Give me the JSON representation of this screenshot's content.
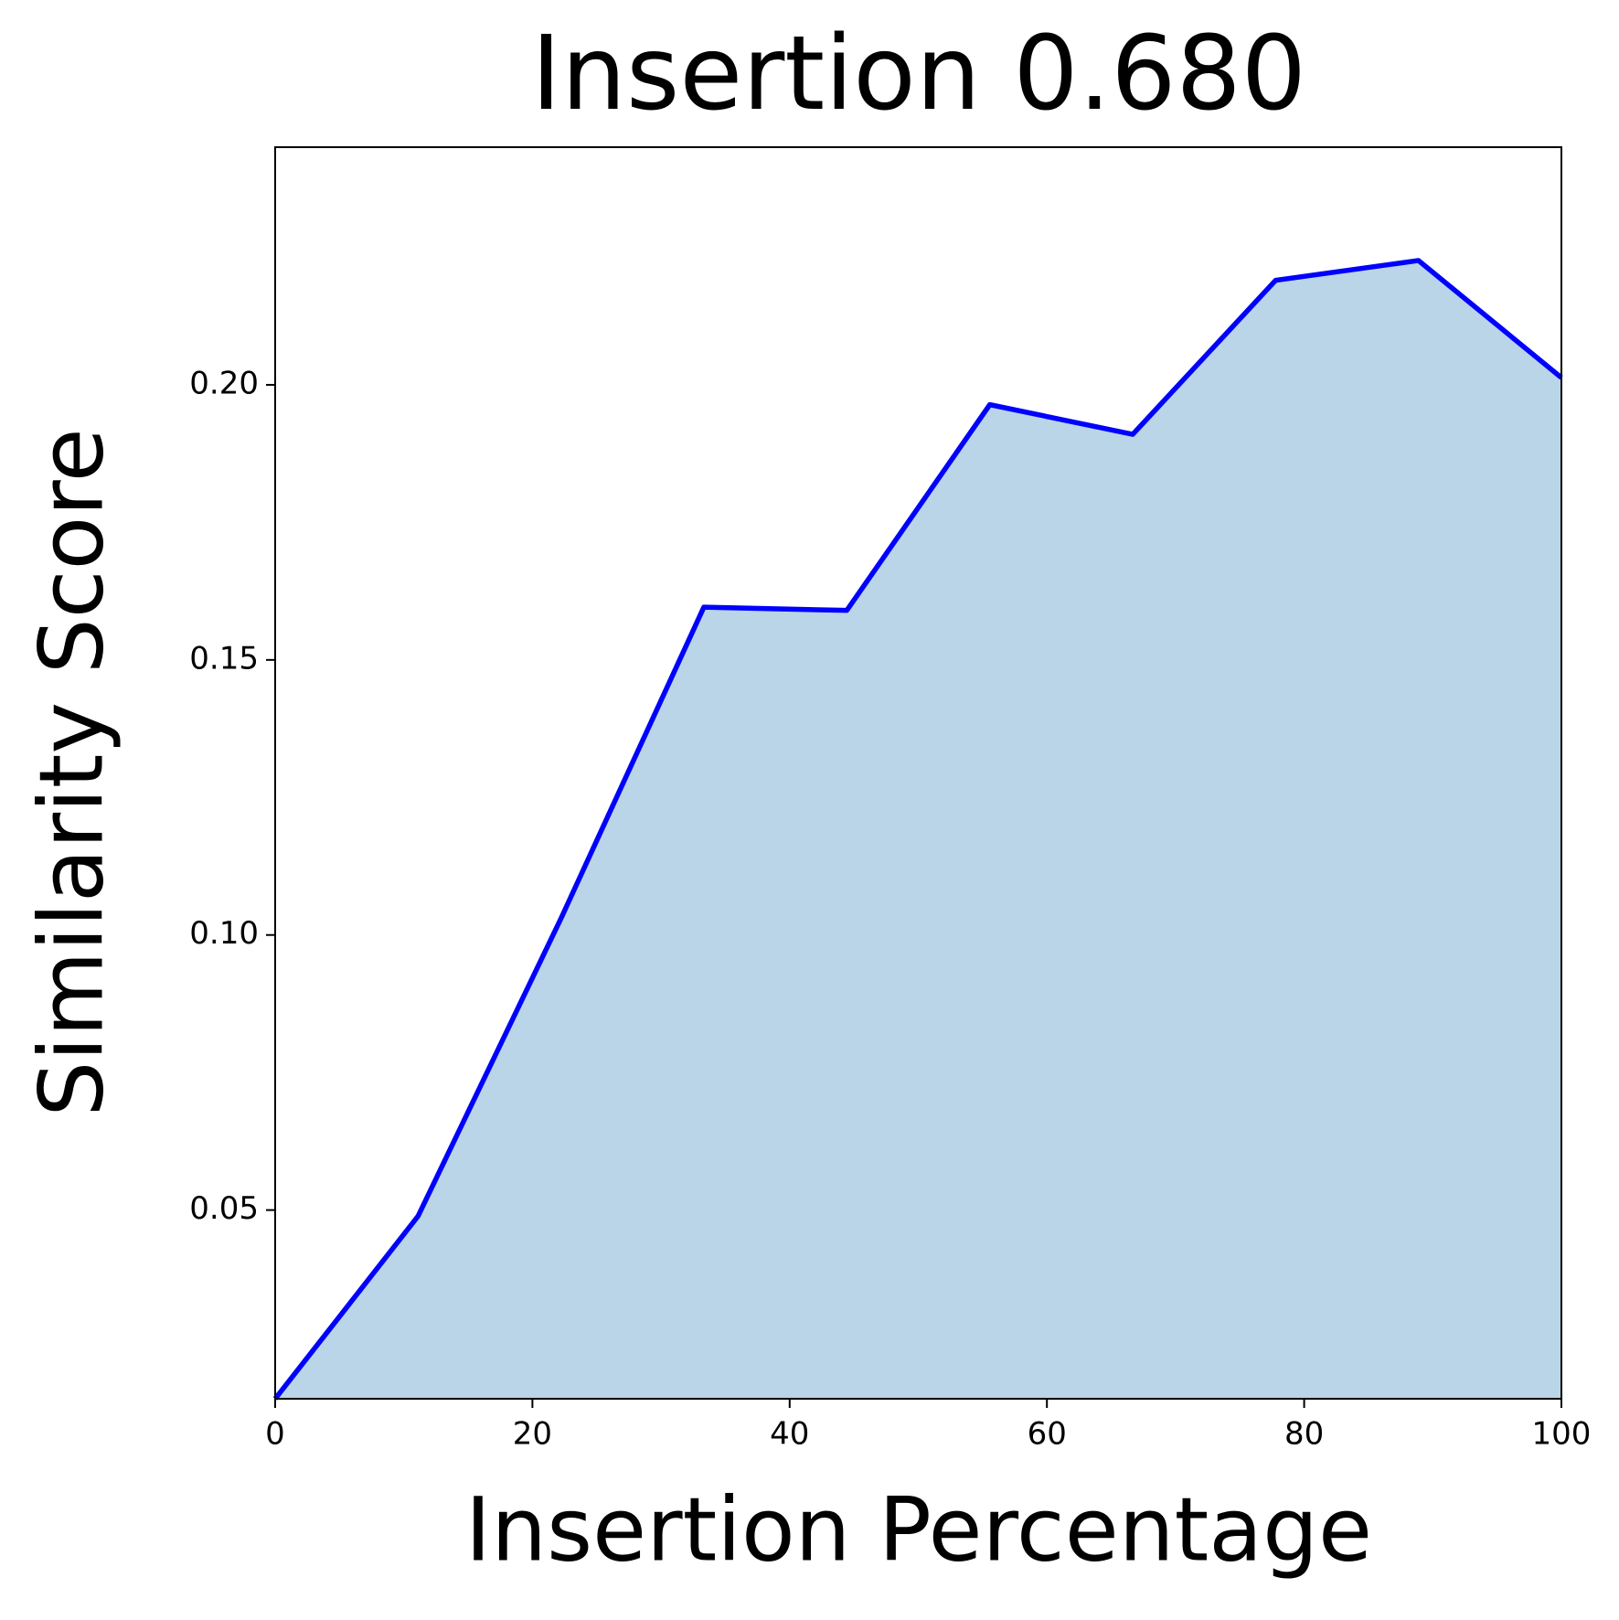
{
  "chart_data": {
    "type": "area",
    "title": "Insertion 0.680",
    "x_label": "Insertion Percentage",
    "y_label": "Similarity Score",
    "x": [
      0,
      11.11,
      22.22,
      33.33,
      44.44,
      55.56,
      66.67,
      77.78,
      88.89,
      100
    ],
    "series": [
      {
        "color": "#0000ff",
        "fill": "#bad4e8",
        "values": [
          0.0157,
          0.0489,
          0.103,
          0.1596,
          0.159,
          0.1964,
          0.191,
          0.219,
          0.2226,
          0.2013
        ]
      }
    ],
    "xlim": [
      0,
      100
    ],
    "xticks": [
      0,
      20,
      40,
      60,
      80,
      100
    ],
    "ylim": [
      0.0157,
      0.2432
    ],
    "yticks": [
      {
        "value": 0.05,
        "label": "0.05"
      },
      {
        "value": 0.1,
        "label": "0.10"
      },
      {
        "value": 0.15,
        "label": "0.15"
      },
      {
        "value": 0.2,
        "label": "0.20"
      }
    ]
  }
}
